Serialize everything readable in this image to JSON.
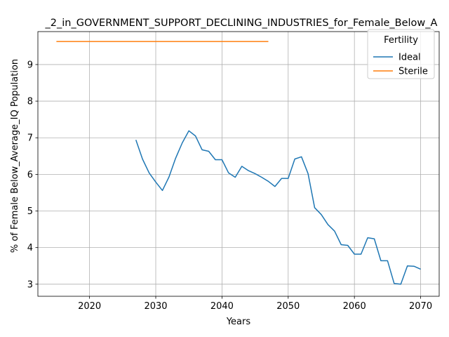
{
  "chart_data": {
    "type": "line",
    "title": "_2_in_GOVERNMENT_SUPPORT_DECLINING_INDUSTRIES_for_Female_Below_A",
    "xlabel": "Years",
    "ylabel": "% of Female Below_Average_IQ Population",
    "xlim": [
      2012.2,
      2072.8
    ],
    "ylim": [
      2.67,
      9.9
    ],
    "xticks": [
      2020,
      2030,
      2040,
      2050,
      2060,
      2070
    ],
    "yticks": [
      3,
      4,
      5,
      6,
      7,
      8,
      9
    ],
    "grid": true,
    "legend": {
      "title": "Fertility",
      "placement": "top-right"
    },
    "series": [
      {
        "name": "Ideal",
        "color": "#1f77b4",
        "x": [
          2027,
          2028,
          2029,
          2030,
          2031,
          2032,
          2033,
          2034,
          2035,
          2036,
          2037,
          2038,
          2039,
          2040,
          2041,
          2042,
          2043,
          2044,
          2045,
          2046,
          2047,
          2048,
          2049,
          2050,
          2051,
          2052,
          2053,
          2054,
          2055,
          2056,
          2057,
          2058,
          2059,
          2060,
          2061,
          2062,
          2063,
          2064,
          2065,
          2066,
          2067,
          2068,
          2069,
          2070
        ],
        "y": [
          6.94,
          6.42,
          6.04,
          5.79,
          5.56,
          5.93,
          6.44,
          6.86,
          7.19,
          7.05,
          6.67,
          6.63,
          6.4,
          6.4,
          6.04,
          5.92,
          6.22,
          6.1,
          6.02,
          5.92,
          5.81,
          5.67,
          5.89,
          5.89,
          6.42,
          6.48,
          6.02,
          5.09,
          4.9,
          4.63,
          4.45,
          4.08,
          4.06,
          3.82,
          3.82,
          4.27,
          4.24,
          3.64,
          3.64,
          3.02,
          3.0,
          3.5,
          3.49,
          3.41
        ]
      },
      {
        "name": "Sterile",
        "color": "#ff7f0e",
        "x": [
          2015,
          2047
        ],
        "y": [
          9.63,
          9.63
        ]
      }
    ]
  }
}
